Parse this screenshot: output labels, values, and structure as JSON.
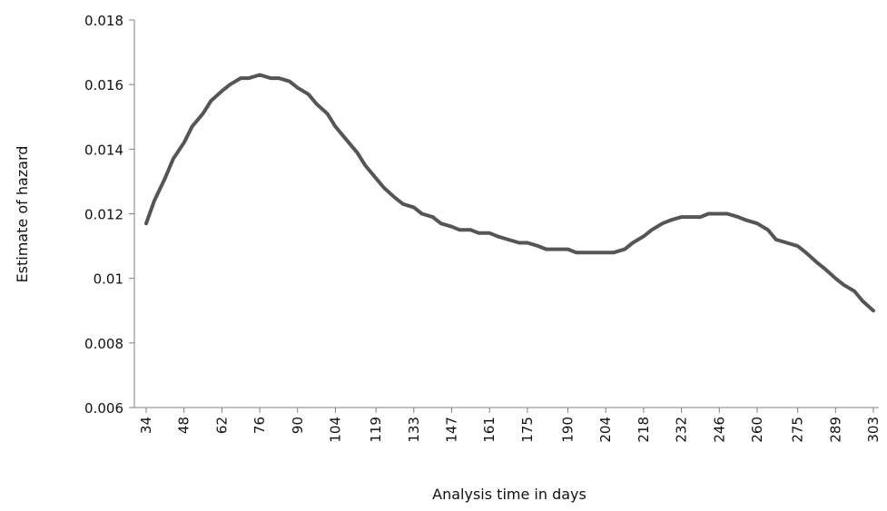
{
  "chart_data": {
    "type": "line",
    "title": "",
    "xlabel": "Analysis time in days",
    "ylabel": "Estimate of hazard",
    "ylim": [
      0.006,
      0.018
    ],
    "yticks": [
      "0.006",
      "0.008",
      "0.01",
      "0.012",
      "0.014",
      "0.016",
      "0.018"
    ],
    "xlim": [
      34,
      303
    ],
    "xticks": [
      34,
      48,
      62,
      76,
      90,
      104,
      119,
      133,
      147,
      161,
      175,
      190,
      204,
      218,
      232,
      246,
      260,
      275,
      289,
      303
    ],
    "grid": false,
    "legend": "none",
    "line_color": "#555555",
    "series": [
      {
        "x": [
          34,
          37,
          41,
          44,
          48,
          51,
          55,
          58,
          62,
          65,
          69,
          72,
          76,
          80,
          83,
          87,
          90,
          94,
          97,
          101,
          104,
          108,
          112,
          115,
          119,
          122,
          126,
          129,
          133,
          136,
          140,
          143,
          147,
          150,
          154,
          157,
          161,
          164,
          168,
          172,
          175,
          179,
          182,
          186,
          190,
          193,
          197,
          200,
          204,
          207,
          211,
          214,
          218,
          221,
          225,
          228,
          232,
          235,
          239,
          242,
          246,
          249,
          253,
          256,
          260,
          264,
          267,
          271,
          275,
          278,
          282,
          285,
          289,
          292,
          296,
          299,
          303
        ],
        "values": [
          0.0117,
          0.0124,
          0.0131,
          0.0137,
          0.0142,
          0.0147,
          0.0151,
          0.0155,
          0.0158,
          0.016,
          0.0162,
          0.0162,
          0.0163,
          0.0162,
          0.0162,
          0.0161,
          0.0159,
          0.0157,
          0.0154,
          0.0151,
          0.0147,
          0.0143,
          0.0139,
          0.0135,
          0.0131,
          0.0128,
          0.0125,
          0.0123,
          0.0122,
          0.012,
          0.0119,
          0.0117,
          0.0116,
          0.0115,
          0.0115,
          0.0114,
          0.0114,
          0.0113,
          0.0112,
          0.0111,
          0.0111,
          0.011,
          0.0109,
          0.0109,
          0.0109,
          0.0108,
          0.0108,
          0.0108,
          0.0108,
          0.0108,
          0.0109,
          0.0111,
          0.0113,
          0.0115,
          0.0117,
          0.0118,
          0.0119,
          0.0119,
          0.0119,
          0.012,
          0.012,
          0.012,
          0.0119,
          0.0118,
          0.0117,
          0.0115,
          0.0112,
          0.0111,
          0.011,
          0.0108,
          0.0105,
          0.0103,
          0.01,
          0.0098,
          0.0096,
          0.0093,
          0.009
        ]
      }
    ]
  }
}
